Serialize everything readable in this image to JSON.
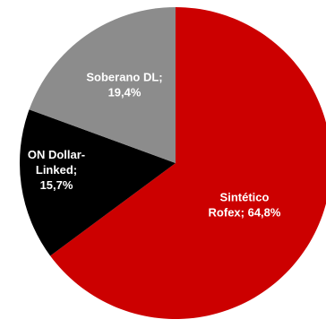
{
  "chart_data": {
    "type": "pie",
    "title": "",
    "slices": [
      {
        "label_lines": [
          "Sintético",
          "Rofex; 64,8%"
        ],
        "value": 64.8,
        "color": "#cc0000"
      },
      {
        "label_lines": [
          "ON Dollar-",
          "Linked;",
          "15,7%"
        ],
        "value": 15.7,
        "color": "#000000"
      },
      {
        "label_lines": [
          "Soberano DL;",
          "19,4%"
        ],
        "value": 19.4,
        "color": "#8c8c8c"
      }
    ]
  }
}
